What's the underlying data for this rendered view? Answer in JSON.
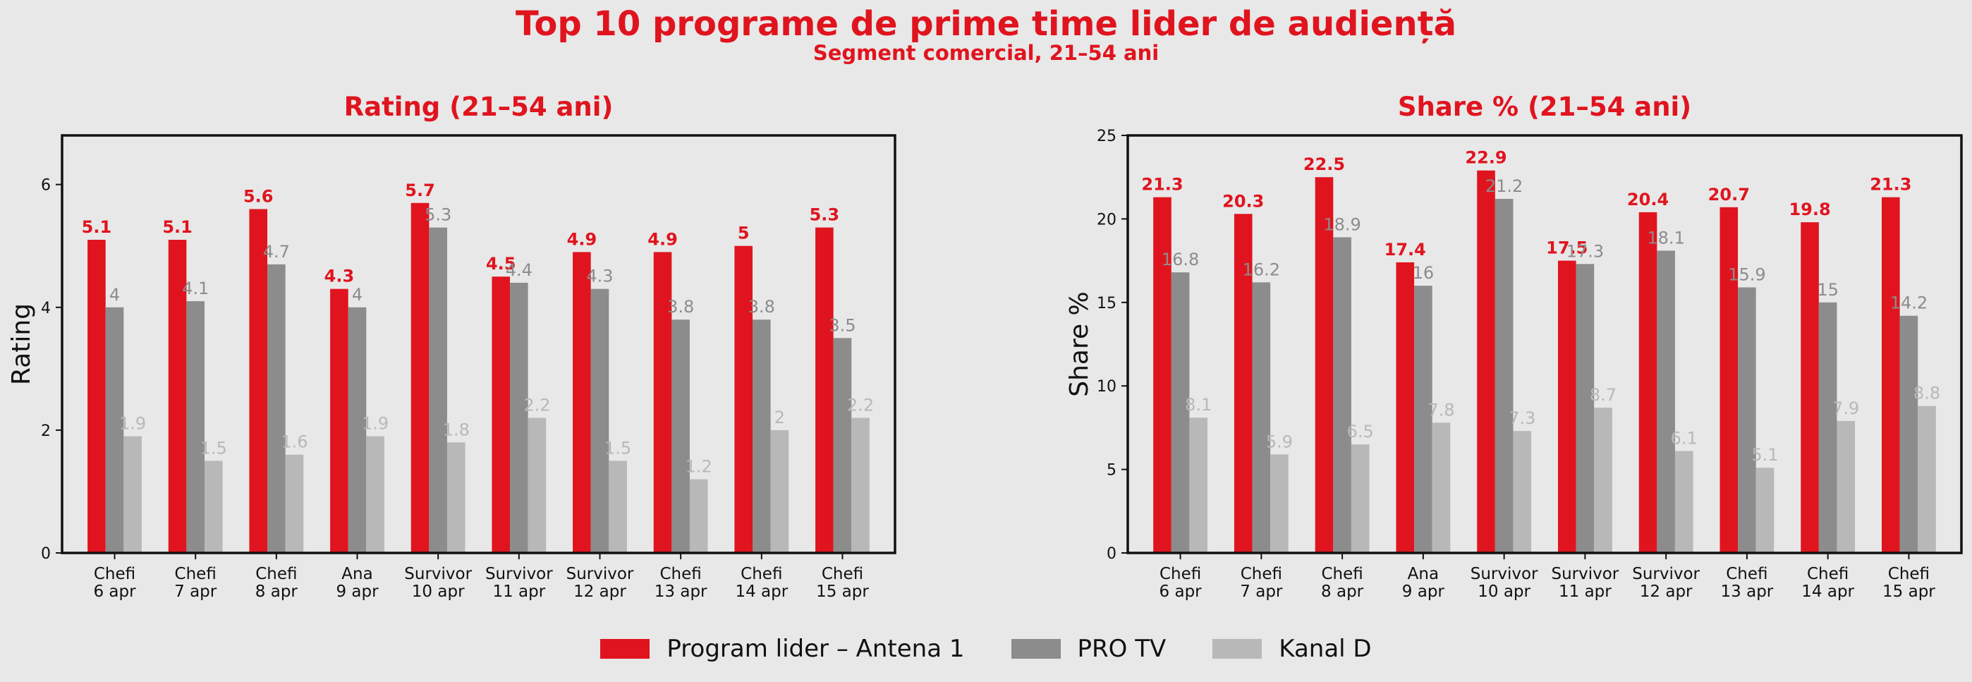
{
  "page": {
    "title": "Top 10 programe de prime time lider de audiență",
    "subtitle": "Segment comercial, 21–54 ani"
  },
  "legend": [
    {
      "label": "Program lider – Antena 1",
      "color": "#e0141e"
    },
    {
      "label": "PRO TV",
      "color": "#8c8c8c"
    },
    {
      "label": "Kanal D",
      "color": "#b8b8b8"
    }
  ],
  "chart_data": [
    {
      "type": "bar",
      "title": "Rating (21–54 ani)",
      "ylabel": "Rating",
      "xlabel": "",
      "ylim": [
        0,
        6.8
      ],
      "yticks": [
        0,
        2,
        4,
        6
      ],
      "categories": [
        "Chefi\n6 apr",
        "Chefi\n7 apr",
        "Chefi\n8 apr",
        "Ana\n9 apr",
        "Survivor\n10 apr",
        "Survivor\n11 apr",
        "Survivor\n12 apr",
        "Chefi\n13 apr",
        "Chefi\n14 apr",
        "Chefi\n15 apr"
      ],
      "series": [
        {
          "name": "Program lider – Antena 1",
          "color": "#e0141e",
          "values": [
            5.1,
            5.1,
            5.6,
            4.3,
            5.7,
            4.5,
            4.9,
            4.9,
            5,
            5.3
          ]
        },
        {
          "name": "PRO TV",
          "color": "#8c8c8c",
          "values": [
            4,
            4.1,
            4.7,
            4,
            5.3,
            4.4,
            4.3,
            3.8,
            3.8,
            3.5
          ]
        },
        {
          "name": "Kanal D",
          "color": "#b8b8b8",
          "values": [
            1.9,
            1.5,
            1.6,
            1.9,
            1.8,
            2.2,
            1.5,
            1.2,
            2,
            2.2
          ]
        }
      ],
      "grid": false
    },
    {
      "type": "bar",
      "title": "Share % (21–54 ani)",
      "ylabel": "Share %",
      "xlabel": "",
      "ylim": [
        0,
        25
      ],
      "yticks": [
        0,
        5,
        10,
        15,
        20,
        25
      ],
      "categories": [
        "Chefi\n6 apr",
        "Chefi\n7 apr",
        "Chefi\n8 apr",
        "Ana\n9 apr",
        "Survivor\n10 apr",
        "Survivor\n11 apr",
        "Survivor\n12 apr",
        "Chefi\n13 apr",
        "Chefi\n14 apr",
        "Chefi\n15 apr"
      ],
      "series": [
        {
          "name": "Program lider – Antena 1",
          "color": "#e0141e",
          "values": [
            21.3,
            20.3,
            22.5,
            17.4,
            22.9,
            17.5,
            20.4,
            20.7,
            19.8,
            21.3
          ]
        },
        {
          "name": "PRO TV",
          "color": "#8c8c8c",
          "values": [
            16.8,
            16.2,
            18.9,
            16,
            21.2,
            17.3,
            18.1,
            15.9,
            15,
            14.2
          ]
        },
        {
          "name": "Kanal D",
          "color": "#b8b8b8",
          "values": [
            8.1,
            5.9,
            6.5,
            7.8,
            7.3,
            8.7,
            6.1,
            5.1,
            7.9,
            8.8
          ]
        }
      ],
      "grid": false
    }
  ]
}
